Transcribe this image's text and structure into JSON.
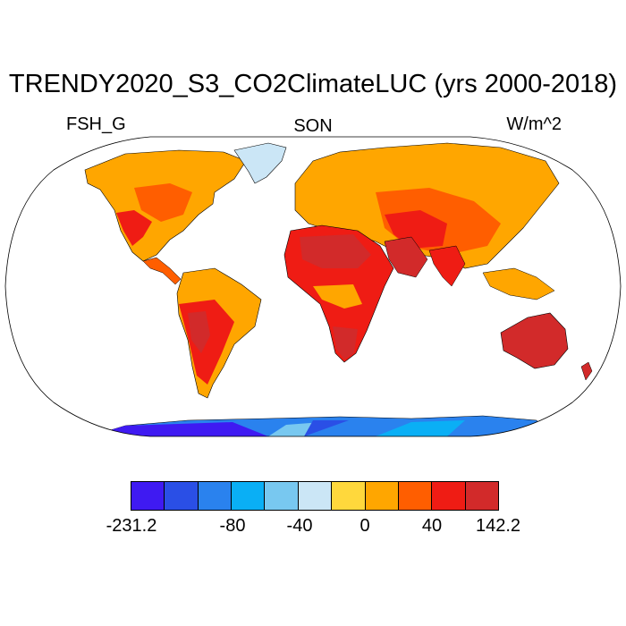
{
  "title": "TRENDY2020_S3_CO2ClimateLUC (yrs 2000-2018)",
  "left_label": "FSH_G",
  "center_label": "SON",
  "right_label": "W/m^2",
  "colorbar": {
    "colors": [
      "#3f1af2",
      "#2a4fe6",
      "#2a82ee",
      "#0aaff5",
      "#78c8f0",
      "#cbe6f6",
      "#ffd83c",
      "#ffa600",
      "#ff5e00",
      "#ef1c14",
      "#d22a2a"
    ],
    "tick_labels": [
      "-231.2",
      "-80",
      "-40",
      "0",
      "40",
      "142.2"
    ]
  }
}
